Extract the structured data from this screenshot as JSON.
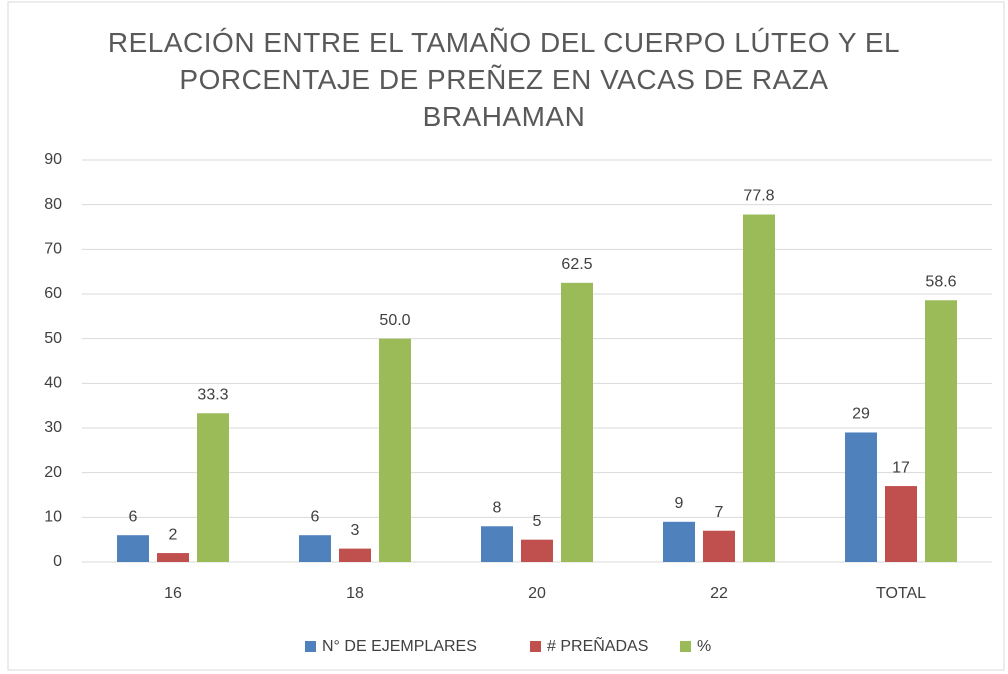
{
  "chart_data": {
    "type": "bar",
    "title": "RELACIÓN ENTRE EL TAMAÑO DEL CUERPO LÚTEO Y EL PORCENTAJE DE PREÑEZ EN VACAS DE RAZA BRAHAMAN",
    "categories": [
      "16",
      "18",
      "20",
      "22",
      "TOTAL"
    ],
    "series": [
      {
        "name": "N° DE EJEMPLARES",
        "color": "#4f81bd",
        "values": [
          6,
          6,
          8,
          9,
          29
        ]
      },
      {
        "name": "# PREÑADAS",
        "color": "#c0504d",
        "values": [
          2,
          3,
          5,
          7,
          17
        ]
      },
      {
        "name": "%",
        "color": "#9bbb59",
        "values": [
          33.3,
          50,
          62.5,
          77.8,
          58.6
        ],
        "value_labels": [
          "33.3",
          "50.0",
          "62.5",
          "77.8",
          "58.6"
        ]
      }
    ],
    "ylim": [
      0,
      90
    ],
    "yticks": [
      0,
      10,
      20,
      30,
      40,
      50,
      60,
      70,
      80,
      90
    ],
    "grid": true,
    "legend": "bottom"
  }
}
